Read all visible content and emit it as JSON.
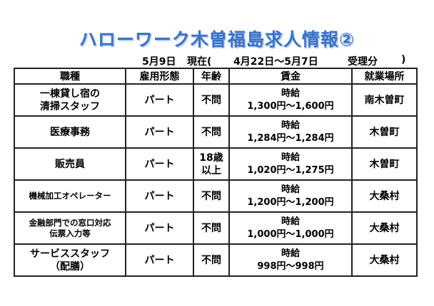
{
  "title": "ハローワーク木曽福島求人情報②",
  "subtitle": {
    "date": "5月9日",
    "status": "現在(",
    "range": "4月22日～5月7日",
    "received": "受理分",
    "close": ")"
  },
  "table": {
    "headers": [
      "職種",
      "雇用形態",
      "年齢",
      "賃金",
      "就業場所"
    ],
    "rows": [
      {
        "job": [
          "一棟貸し宿の",
          "清掃スタッフ"
        ],
        "employment": "パート",
        "age": [
          "不問"
        ],
        "wage_type": "時給",
        "wage_range": "1,300円～1,600円",
        "location": "南木曽町"
      },
      {
        "job": [
          "医療事務"
        ],
        "employment": "パート",
        "age": [
          "不問"
        ],
        "wage_type": "時給",
        "wage_range": "1,284円～1,284円",
        "location": "木曽町"
      },
      {
        "job": [
          "販売員"
        ],
        "employment": "パート",
        "age": [
          "18歳",
          "以上"
        ],
        "wage_type": "時給",
        "wage_range": "1,020円～1,275円",
        "location": "木曽町"
      },
      {
        "job": [
          "機械加工オペレーター"
        ],
        "employment": "パート",
        "age": [
          "不問"
        ],
        "wage_type": "時給",
        "wage_range": "1,200円～1,200円",
        "location": "大桑村"
      },
      {
        "job": [
          "金融部門での窓口対応",
          "伝票入力等"
        ],
        "employment": "パート",
        "age": [
          "不問"
        ],
        "wage_type": "時給",
        "wage_range": "1,000円～1,000円",
        "location": "大桑村"
      },
      {
        "job": [
          "サービススタッフ",
          "（配膳）"
        ],
        "employment": "パート",
        "age": [
          "不問"
        ],
        "wage_type": "時給",
        "wage_range": "998円～998円",
        "location": "大桑村"
      }
    ]
  }
}
